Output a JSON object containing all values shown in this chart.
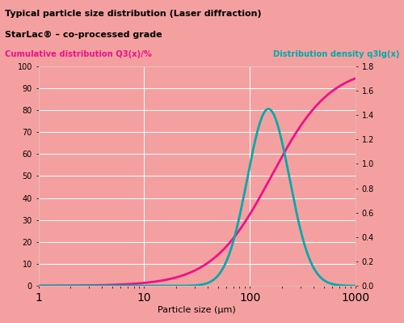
{
  "title1": "Typical particle size distribution (Laser diffraction)",
  "title2": "StarLac® – co-processed grade",
  "left_label": "Cumulative distribution Q3(x)/%",
  "right_label": "Distribution density q3lg(x)",
  "xlabel": "Particle size (μm)",
  "bg_color": "#F5A0A0",
  "plot_bg_color": "#F5A0A0",
  "title_bg_color": "#EC8080",
  "subtitle_bg_color": "#F0AAAA",
  "line1_color": "#EE1188",
  "line2_color": "#00AAAA",
  "left_yticks": [
    0,
    10,
    20,
    30,
    40,
    50,
    60,
    70,
    80,
    90,
    100
  ],
  "right_yticks": [
    0.0,
    0.2,
    0.4,
    0.6,
    0.8,
    1.0,
    1.2,
    1.4,
    1.6,
    1.8
  ],
  "xlim": [
    1,
    1000
  ],
  "ylim_left": [
    0,
    100
  ],
  "ylim_right": [
    0.0,
    1.8
  ],
  "grid_color": "#FFFFFF",
  "left_label_color": "#EE1188",
  "right_label_color": "#00AAAA",
  "title1_fontsize": 8.0,
  "title2_fontsize": 8.0,
  "label_fontsize": 7.2,
  "tick_fontsize": 7.0,
  "xlabel_fontsize": 8.0
}
